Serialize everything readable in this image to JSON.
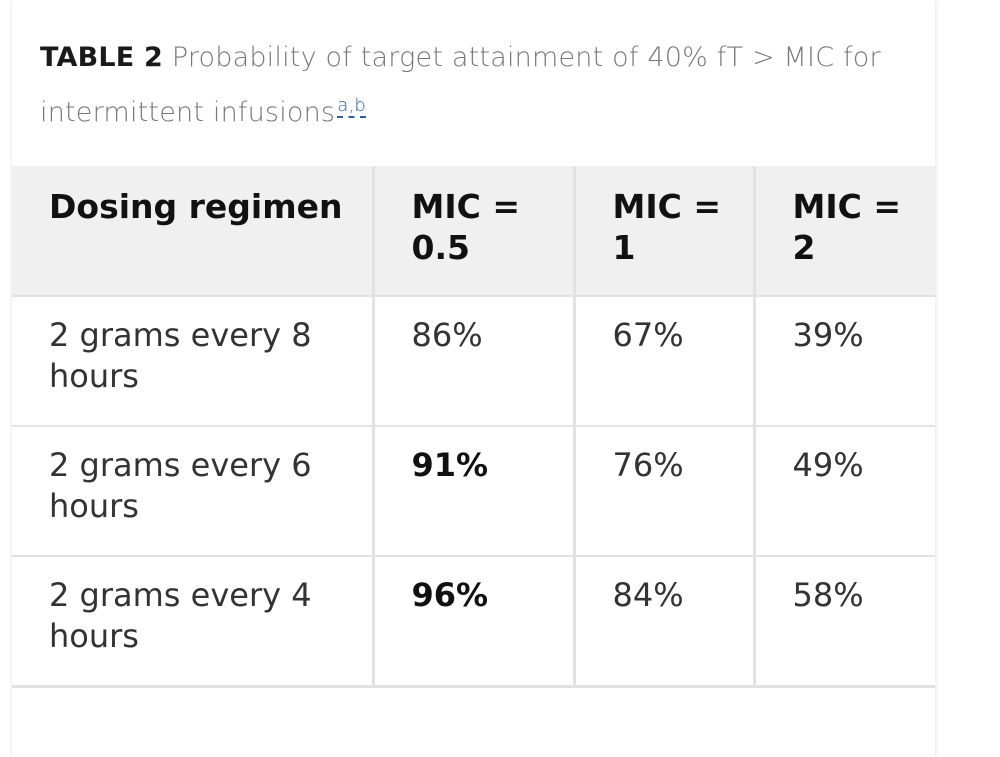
{
  "caption": {
    "label": "TABLE 2",
    "text": " Probability of target attainment of 40% fT > MIC for intermittent infusions",
    "footnote_refs": "a,b"
  },
  "table": {
    "headers": [
      "Dosing regimen",
      "MIC = 0.5",
      "MIC = 1",
      "MIC = 2"
    ],
    "rows": [
      [
        "2 grams every 8 hours",
        "86%",
        "67%",
        "39%"
      ],
      [
        "2 grams every 6 hours",
        "91%",
        "76%",
        "49%"
      ],
      [
        "2 grams every 4 hours",
        "96%",
        "84%",
        "58%"
      ]
    ],
    "bold_cells": [
      "1.1",
      "2.1"
    ]
  }
}
